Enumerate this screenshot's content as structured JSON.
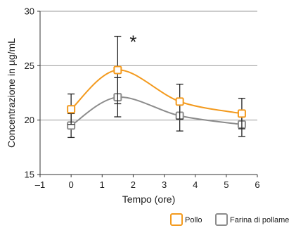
{
  "chart_data": {
    "type": "line",
    "xlabel": "Tempo (ore)",
    "ylabel": "Concentrazione in µg/mL",
    "xlim": [
      -1,
      6
    ],
    "ylim": [
      15,
      30
    ],
    "xticks": [
      -1,
      0,
      1,
      2,
      3,
      4,
      5,
      6
    ],
    "xtick_labels": [
      "–1",
      "0",
      "1",
      "2",
      "3",
      "4",
      "5",
      "6"
    ],
    "yticks": [
      15,
      20,
      25,
      30
    ],
    "ytick_labels": [
      "15",
      "20",
      "25",
      "30"
    ],
    "grid": "horizontal",
    "legend": "bottom",
    "series": [
      {
        "name": "Pollo",
        "color": "#f39a1e",
        "x": [
          0,
          1.5,
          3.5,
          5.5
        ],
        "y": [
          21.0,
          24.6,
          21.7,
          20.6
        ],
        "error": [
          1.4,
          3.1,
          1.6,
          1.4
        ]
      },
      {
        "name": "Farina di pollame",
        "color": "#8c8c8c",
        "x": [
          0,
          1.5,
          3.5,
          5.5
        ],
        "y": [
          19.5,
          22.1,
          20.4,
          19.6
        ],
        "error": [
          1.1,
          1.8,
          1.4,
          1.1
        ]
      }
    ],
    "annotations": [
      {
        "text": "*",
        "x": 2.0,
        "y": 27.5
      }
    ]
  }
}
